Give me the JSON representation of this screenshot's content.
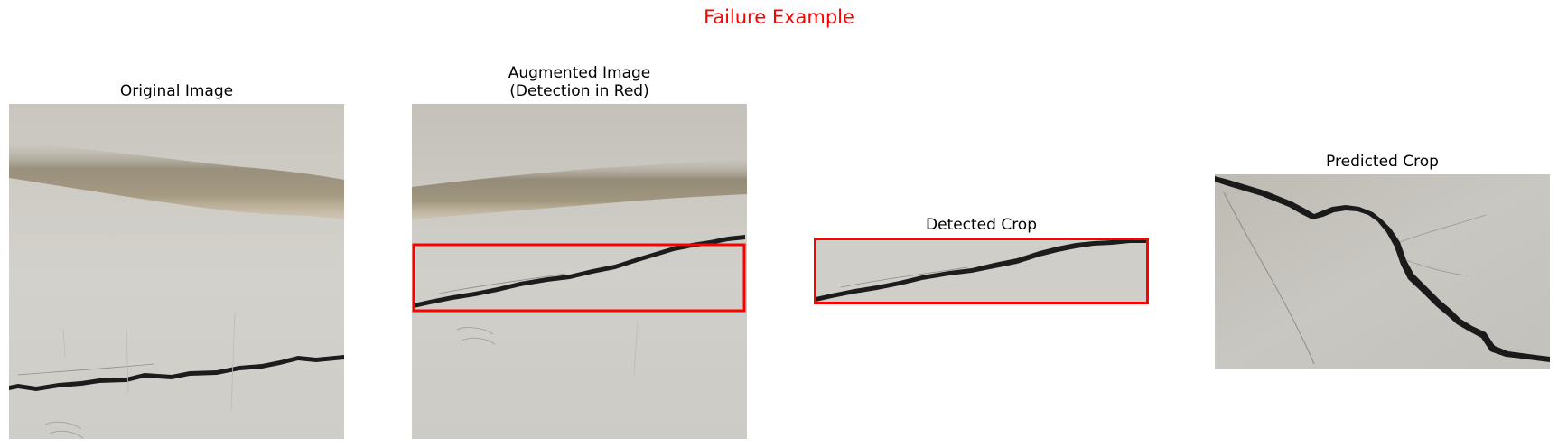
{
  "figure": {
    "title": "Failure Example",
    "title_color": "#ff0000",
    "detection_color": "#ff0000"
  },
  "panels": [
    {
      "title": "Original Image"
    },
    {
      "title": "Augmented Image\n(Detection in Red)"
    },
    {
      "title": "Detected Crop"
    },
    {
      "title": "Predicted Crop"
    }
  ]
}
